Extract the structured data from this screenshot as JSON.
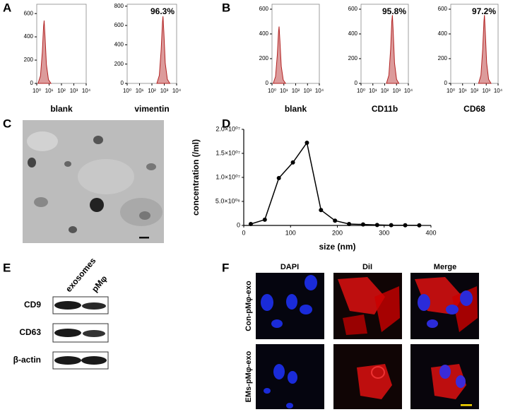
{
  "panel_labels": [
    "A",
    "B",
    "C",
    "D",
    "E",
    "F"
  ],
  "chart_data": [
    {
      "type": "area",
      "xlabel": "blank",
      "color": "#b22222",
      "log_x": true,
      "xlim": [
        1,
        10000
      ],
      "xticks": [
        {
          "value": 1,
          "label": "10⁰"
        },
        {
          "value": 10,
          "label": "10¹"
        },
        {
          "value": 100,
          "label": "10²"
        },
        {
          "value": 1000,
          "label": "10³"
        },
        {
          "value": 10000,
          "label": "10⁴"
        }
      ],
      "ylim": [
        0,
        680
      ],
      "yticks": [
        0,
        200,
        400,
        600
      ],
      "x": [
        1.26,
        2.0,
        2.82,
        3.55,
        3.98,
        4.68,
        6.03,
        8.91,
        14.1
      ],
      "values": [
        0,
        65,
        270,
        486,
        540,
        405,
        162,
        32,
        0
      ]
    },
    {
      "type": "area",
      "xlabel": "vimentin",
      "annotation": "96.3%",
      "color": "#b22222",
      "log_x": true,
      "xlim": [
        1,
        10000
      ],
      "xticks": [
        {
          "value": 1,
          "label": "10⁰"
        },
        {
          "value": 10,
          "label": "10¹"
        },
        {
          "value": 100,
          "label": "10²"
        },
        {
          "value": 1000,
          "label": "10³"
        },
        {
          "value": 10000,
          "label": "10⁴"
        }
      ],
      "ylim": [
        0,
        820
      ],
      "yticks": [
        0,
        200,
        400,
        600,
        800
      ],
      "x": [
        251,
        398,
        562,
        708,
        794,
        933,
        1202,
        1778,
        2818
      ],
      "values": [
        0,
        83,
        348,
        626,
        695,
        521,
        209,
        42,
        0
      ]
    },
    {
      "type": "area",
      "xlabel": "blank",
      "color": "#b22222",
      "log_x": true,
      "xlim": [
        1,
        10000
      ],
      "xticks": [
        {
          "value": 1,
          "label": "10⁰"
        },
        {
          "value": 10,
          "label": "10¹"
        },
        {
          "value": 100,
          "label": "10²"
        },
        {
          "value": 1000,
          "label": "10³"
        },
        {
          "value": 10000,
          "label": "10⁴"
        }
      ],
      "ylim": [
        0,
        640
      ],
      "yticks": [
        0,
        200,
        400,
        600
      ],
      "x": [
        1.26,
        2.0,
        2.82,
        3.55,
        3.98,
        4.68,
        6.03,
        8.91,
        14.1
      ],
      "values": [
        0,
        55,
        230,
        414,
        460,
        345,
        138,
        28,
        0
      ]
    },
    {
      "type": "area",
      "xlabel": "CD11b",
      "annotation": "95.8%",
      "color": "#b22222",
      "log_x": true,
      "xlim": [
        1,
        10000
      ],
      "xticks": [
        {
          "value": 1,
          "label": "10⁰"
        },
        {
          "value": 10,
          "label": "10¹"
        },
        {
          "value": 100,
          "label": "10²"
        },
        {
          "value": 1000,
          "label": "10³"
        },
        {
          "value": 10000,
          "label": "10⁴"
        }
      ],
      "ylim": [
        0,
        640
      ],
      "yticks": [
        0,
        200,
        400,
        600
      ],
      "x": [
        141,
        224,
        316,
        398,
        447,
        525,
        676,
        1000,
        1585
      ],
      "values": [
        0,
        66,
        276,
        497,
        552,
        414,
        166,
        33,
        0
      ]
    },
    {
      "type": "area",
      "xlabel": "CD68",
      "annotation": "97.2%",
      "color": "#b22222",
      "log_x": true,
      "xlim": [
        1,
        10000
      ],
      "xticks": [
        {
          "value": 1,
          "label": "10⁰"
        },
        {
          "value": 10,
          "label": "10¹"
        },
        {
          "value": 100,
          "label": "10²"
        },
        {
          "value": 1000,
          "label": "10³"
        },
        {
          "value": 10000,
          "label": "10⁴"
        }
      ],
      "ylim": [
        0,
        640
      ],
      "yticks": [
        0,
        200,
        400,
        600
      ],
      "x": [
        224,
        355,
        501,
        631,
        708,
        832,
        1072,
        1585,
        2512
      ],
      "values": [
        0,
        66,
        276,
        497,
        552,
        414,
        166,
        33,
        0
      ]
    },
    {
      "type": "line",
      "xlabel": "size (nm)",
      "ylabel": "concentration (/ml)",
      "color": "#000000",
      "xlim": [
        0,
        400
      ],
      "xticks": [
        0,
        100,
        200,
        300,
        400
      ],
      "ylim": [
        0,
        20000000
      ],
      "yticks": [
        0,
        {
          "value": 5000000,
          "label": "5.0×10⁰⁶"
        },
        {
          "value": 10000000,
          "label": "1.0×10⁰⁷"
        },
        {
          "value": 15000000,
          "label": "1.5×10⁰⁷"
        },
        {
          "value": 20000000,
          "label": "2.0×10⁰⁷"
        }
      ],
      "x": [
        15,
        45,
        75,
        105,
        135,
        165,
        195,
        225,
        255,
        285,
        315,
        345,
        375
      ],
      "values": [
        300000,
        1200000,
        9850000,
        13100000,
        17200000,
        3200000,
        1000000,
        300000,
        200000,
        100000,
        50000,
        30000,
        20000
      ]
    }
  ],
  "western_blot": {
    "columns": [
      "exosomes",
      "pMφ"
    ],
    "rows": [
      "CD9",
      "CD63",
      "β-actin"
    ]
  },
  "microscopy": {
    "columns": [
      "DAPI",
      "DiI",
      "Merge"
    ],
    "rows": [
      "Con-pMφ-exo",
      "EMs-pMφ-exo"
    ]
  }
}
